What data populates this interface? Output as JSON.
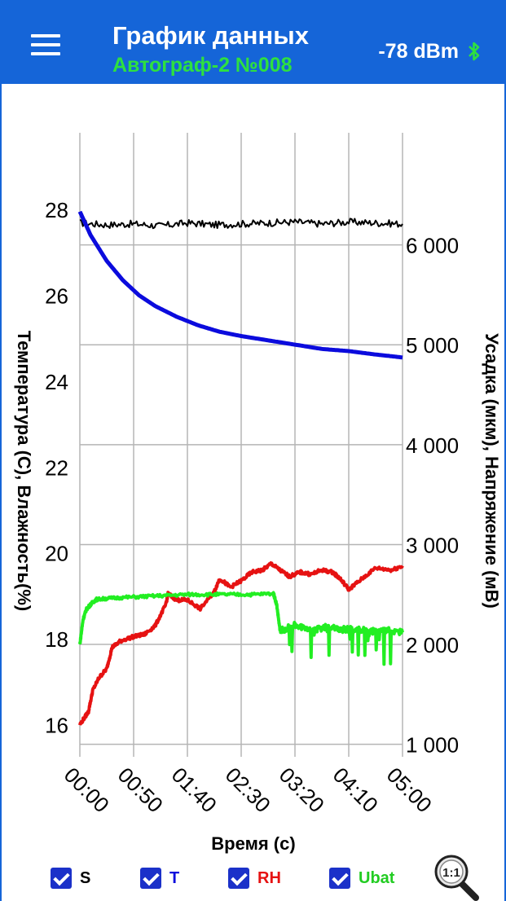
{
  "header": {
    "title": "График данных",
    "subtitle": "Автограф-2 №008",
    "rssi": "-78 dBm",
    "menu_icon": "menu-icon",
    "bluetooth_icon": "bluetooth-icon"
  },
  "chart_data": {
    "type": "line",
    "xlabel": "Время (с)",
    "ylabel_left": "Температура (С), Влажность(%)",
    "ylabel_right": "Усадка (мкм), Напряжение (мВ)",
    "x_ticks": [
      "00:00",
      "00:50",
      "01:40",
      "02:30",
      "03:20",
      "04:10",
      "05:00"
    ],
    "xlim": [
      0,
      300
    ],
    "y_left_ticks": [
      "28",
      "26",
      "24",
      "22",
      "20",
      "18",
      "16"
    ],
    "ylim_left": [
      15.25,
      29.5
    ],
    "y_right_ticks": [
      "6 000",
      "5 000",
      "4 000",
      "3 000",
      "2 000",
      "1 000"
    ],
    "ylim_right": [
      875,
      7000
    ],
    "grid": true,
    "series": [
      {
        "name": "S",
        "axis": "right",
        "color": "#000000",
        "x": [
          0,
          25,
          50,
          75,
          100,
          125,
          150,
          175,
          200,
          225,
          250,
          275,
          300
        ],
        "values": [
          6220,
          6200,
          6210,
          6190,
          6220,
          6200,
          6210,
          6220,
          6230,
          6210,
          6230,
          6220,
          6210
        ]
      },
      {
        "name": "T",
        "axis": "left",
        "color": "#0b0bdd",
        "x": [
          0,
          10,
          25,
          40,
          55,
          70,
          90,
          110,
          130,
          150,
          175,
          200,
          225,
          250,
          275,
          290,
          300
        ],
        "values": [
          27.95,
          27.4,
          26.8,
          26.35,
          26.0,
          25.75,
          25.5,
          25.3,
          25.15,
          25.05,
          24.95,
          24.85,
          24.75,
          24.7,
          24.62,
          24.58,
          24.55
        ]
      },
      {
        "name": "RH",
        "axis": "left",
        "color": "#e61212",
        "x": [
          0,
          8,
          12,
          18,
          25,
          30,
          38,
          50,
          60,
          70,
          80,
          82,
          90,
          100,
          112,
          125,
          130,
          140,
          150,
          160,
          170,
          178,
          186,
          195,
          205,
          215,
          225,
          235,
          242,
          250,
          260,
          275,
          290,
          300
        ],
        "values": [
          16.0,
          16.3,
          16.8,
          17.1,
          17.3,
          17.8,
          17.95,
          18.05,
          18.1,
          18.3,
          18.8,
          19.05,
          18.9,
          18.9,
          18.7,
          19.1,
          19.4,
          19.2,
          19.35,
          19.55,
          19.6,
          19.75,
          19.6,
          19.45,
          19.55,
          19.5,
          19.6,
          19.55,
          19.4,
          19.15,
          19.35,
          19.65,
          19.6,
          19.7
        ]
      },
      {
        "name": "Ubat",
        "axis": "right",
        "color": "#22ee22",
        "x": [
          0,
          3,
          6,
          10,
          15,
          25,
          40,
          60,
          80,
          100,
          120,
          140,
          160,
          180,
          183,
          186,
          190,
          200,
          210,
          220,
          230,
          240,
          250,
          260,
          270,
          280,
          290,
          300
        ],
        "values": [
          2000,
          2250,
          2350,
          2400,
          2450,
          2460,
          2470,
          2480,
          2490,
          2500,
          2500,
          2500,
          2500,
          2510,
          2400,
          2150,
          2150,
          2200,
          2150,
          2150,
          2180,
          2150,
          2150,
          2150,
          2130,
          2150,
          2140,
          2120
        ]
      }
    ]
  },
  "legend": [
    {
      "label": "S",
      "color": "#000000"
    },
    {
      "label": "T",
      "color": "#0b0bdd"
    },
    {
      "label": "RH",
      "color": "#e61212"
    },
    {
      "label": "Ubat",
      "color": "#22cc22"
    }
  ],
  "zoom_button": {
    "label": "1:1",
    "icon": "zoom-reset-icon"
  }
}
